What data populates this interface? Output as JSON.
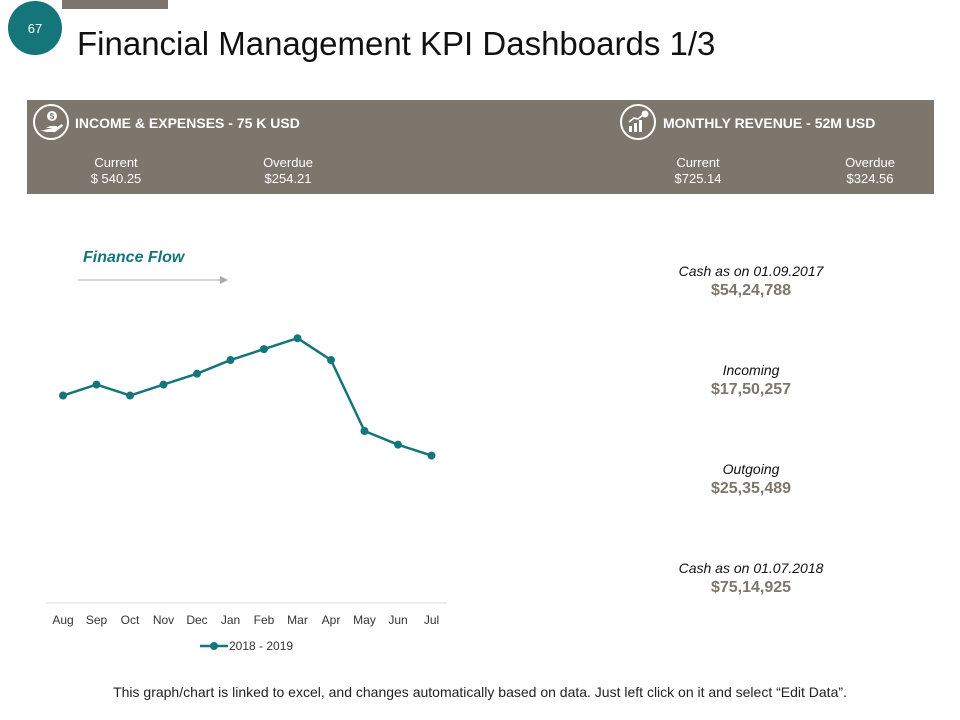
{
  "page": {
    "number": "67",
    "title": "Financial Management KPI Dashboards 1/3"
  },
  "kpis": [
    {
      "icon": "hand-dollar-icon",
      "heading": "INCOME & EXPENSES - 75 K USD",
      "current_label": "Current",
      "current_value": "$ 540.25",
      "overdue_label": "Overdue",
      "overdue_value": "$254.21"
    },
    {
      "icon": "growth-chart-icon",
      "heading": "MONTHLY REVENUE - 52M USD",
      "current_label": "Current",
      "current_value": "$725.14",
      "overdue_label": "Overdue",
      "overdue_value": "$324.56"
    }
  ],
  "finance_flow": {
    "title": "Finance Flow"
  },
  "chart_data": {
    "type": "line",
    "title": "Finance Flow",
    "categories": [
      "Aug",
      "Sep",
      "Oct",
      "Nov",
      "Dec",
      "Jan",
      "Feb",
      "Mar",
      "Apr",
      "May",
      "Jun",
      "Jul"
    ],
    "series": [
      {
        "name": "2018 - 2019",
        "values": [
          76,
          80,
          76,
          80,
          84,
          89,
          93,
          97,
          89,
          63,
          58,
          54
        ]
      }
    ],
    "ylim": [
      0,
      100
    ],
    "grid": false,
    "legend": "bottom",
    "color": "#14767b"
  },
  "stats": [
    {
      "label": "Cash as on 01.09.2017",
      "value": "$54,24,788"
    },
    {
      "label": "Incoming",
      "value": "$17,50,257"
    },
    {
      "label": "Outgoing",
      "value": "$25,35,489"
    },
    {
      "label": "Cash as on 01.07.2018",
      "value": "$75,14,925"
    }
  ],
  "footnote": "This graph/chart is linked to excel, and changes automatically based on data. Just left click on it and select “Edit Data”.",
  "colors": {
    "accent": "#14767b",
    "band": "#7d766c"
  }
}
